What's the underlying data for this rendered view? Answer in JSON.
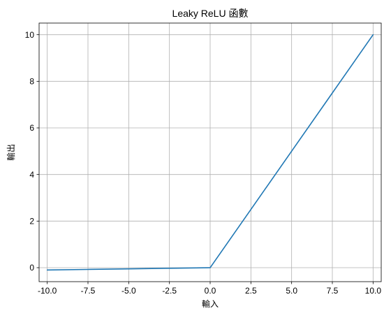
{
  "chart_data": {
    "type": "line",
    "title": "Leaky ReLU 函數",
    "xlabel": "輸入",
    "ylabel": "輸出",
    "xlim": [
      -10.5,
      10.5
    ],
    "ylim": [
      -0.6,
      10.5
    ],
    "xticks": [
      -10.0,
      -7.5,
      -5.0,
      -2.5,
      0.0,
      2.5,
      5.0,
      7.5,
      10.0
    ],
    "xtick_labels": [
      "-10.0",
      "-7.5",
      "-5.0",
      "-2.5",
      "0.0",
      "2.5",
      "5.0",
      "7.5",
      "10.0"
    ],
    "yticks": [
      0,
      2,
      4,
      6,
      8,
      10
    ],
    "ytick_labels": [
      "0",
      "2",
      "4",
      "6",
      "8",
      "10"
    ],
    "grid": true,
    "series": [
      {
        "color": "#1f77b4",
        "x": [
          -10,
          -7.5,
          -5,
          -2.5,
          -0.1,
          0,
          0.1,
          2.5,
          5,
          7.5,
          10
        ],
        "y": [
          -0.1,
          -0.075,
          -0.05,
          -0.025,
          -0.001,
          0,
          0.1,
          2.5,
          5,
          7.5,
          10
        ]
      }
    ]
  }
}
